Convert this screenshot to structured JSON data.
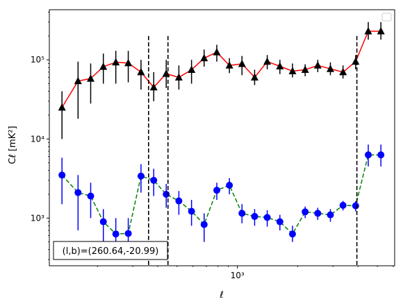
{
  "chart_data": {
    "type": "scatter",
    "title": "",
    "xlabel": "ℓ",
    "ylabel": "Cℓ  [mK²]",
    "xscale": "log",
    "yscale": "log",
    "xlim": [
      115,
      6100
    ],
    "ylim": [
      250,
      430000
    ],
    "grid": false,
    "legend": {
      "placement": "top-right",
      "entries": []
    },
    "x_tick_labels": [
      {
        "value": 1000,
        "label": "10³"
      }
    ],
    "y_tick_labels": [
      {
        "value": 1000,
        "label": "10³"
      },
      {
        "value": 10000,
        "label": "10⁴"
      },
      {
        "value": 100000,
        "label": "10⁵"
      }
    ],
    "annotation": "(l,b)=(260.64,-20.99)",
    "vertical_lines": [
      {
        "x": 360,
        "style": "dashed",
        "color": "#000000"
      },
      {
        "x": 450,
        "style": "dashed",
        "color": "#000000"
      },
      {
        "x": 3950,
        "style": "dashed",
        "color": "#000000"
      }
    ],
    "series": [
      {
        "marker": "triangle",
        "marker_color": "#000000",
        "line_color": "#ff0000",
        "line_style": "solid",
        "x": [
          133,
          160,
          185,
          214,
          247,
          285,
          330,
          382,
          441,
          510,
          590,
          682,
          789,
          912,
          1054,
          1219,
          1409,
          1630,
          1884,
          2179,
          2519,
          2913,
          3368,
          3894,
          4503,
          5207
        ],
        "y": [
          25000,
          54000,
          58000,
          82000,
          93000,
          91000,
          70000,
          45000,
          67000,
          60000,
          75000,
          105000,
          125000,
          85000,
          89000,
          60000,
          95000,
          83000,
          72000,
          75000,
          85000,
          77000,
          70000,
          95000,
          230000,
          230000
        ],
        "y_low": [
          10000,
          18000,
          28000,
          50000,
          50000,
          52000,
          42000,
          30000,
          44000,
          42000,
          50000,
          82000,
          95000,
          68000,
          64000,
          48000,
          76000,
          66000,
          60000,
          62000,
          70000,
          64000,
          58000,
          76000,
          180000,
          180000
        ],
        "y_high": [
          40000,
          95000,
          90000,
          120000,
          130000,
          130000,
          100000,
          70000,
          100000,
          85000,
          100000,
          135000,
          155000,
          105000,
          112000,
          75000,
          115000,
          100000,
          90000,
          88000,
          100000,
          93000,
          85000,
          115000,
          300000,
          300000
        ]
      },
      {
        "marker": "circle",
        "marker_color": "#0000ff",
        "line_color": "#008000",
        "line_style": "dashed",
        "x": [
          133,
          160,
          185,
          214,
          247,
          285,
          330,
          382,
          441,
          510,
          590,
          682,
          789,
          912,
          1054,
          1219,
          1409,
          1630,
          1884,
          2179,
          2519,
          2913,
          3368,
          3894,
          4503,
          5207
        ],
        "y": [
          3500,
          2100,
          1900,
          900,
          630,
          640,
          3400,
          3000,
          2000,
          1650,
          1220,
          830,
          2250,
          2600,
          1150,
          1050,
          1020,
          900,
          630,
          1200,
          1150,
          1100,
          1450,
          1430,
          6300,
          6300
        ],
        "y_low": [
          1500,
          700,
          1000,
          480,
          380,
          380,
          2100,
          1900,
          1350,
          1100,
          800,
          500,
          1700,
          2000,
          860,
          800,
          780,
          700,
          500,
          1000,
          950,
          900,
          1250,
          1220,
          4500,
          4500
        ],
        "y_high": [
          5800,
          3500,
          2800,
          1300,
          1000,
          1000,
          4800,
          4200,
          2700,
          2200,
          1700,
          1150,
          2800,
          3200,
          1500,
          1300,
          1260,
          1100,
          800,
          1400,
          1350,
          1300,
          1650,
          1640,
          8500,
          8500
        ]
      }
    ]
  }
}
